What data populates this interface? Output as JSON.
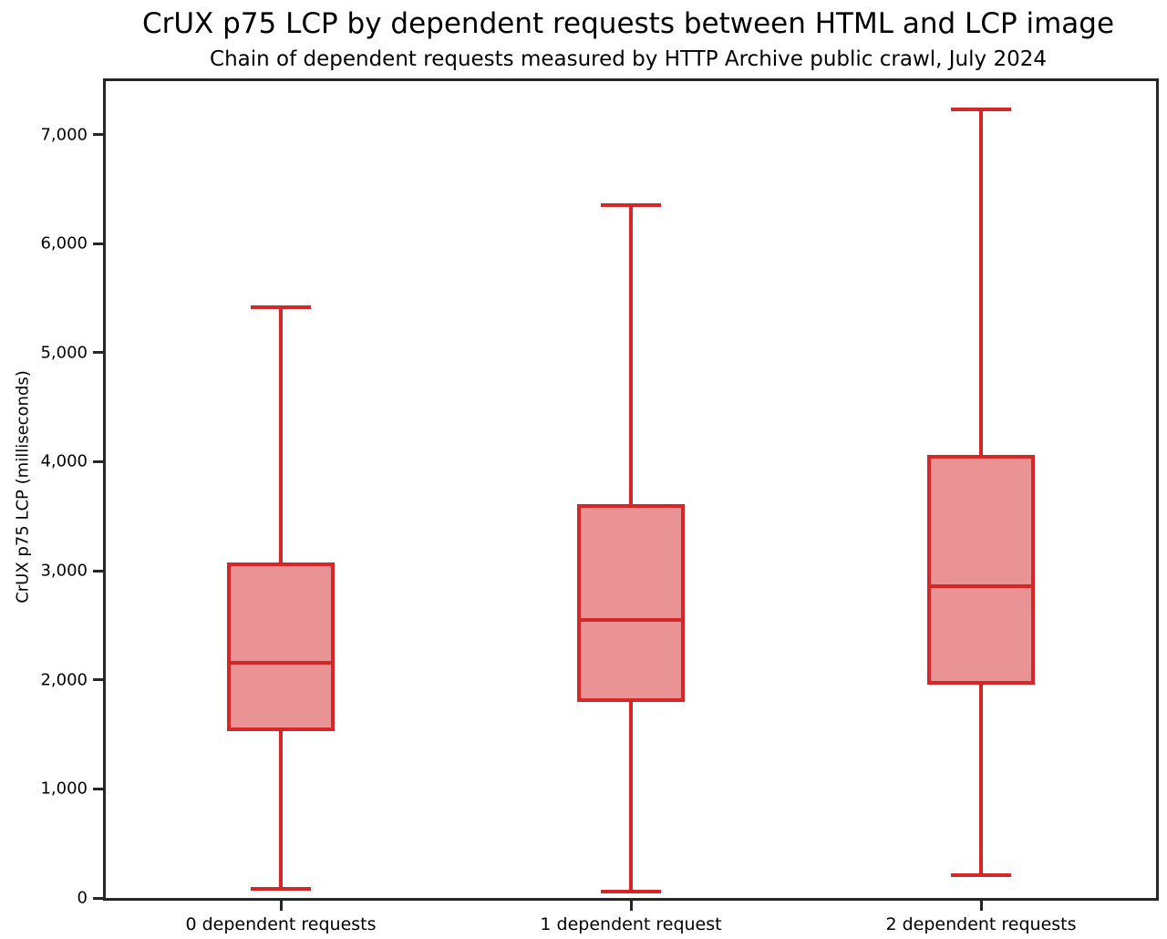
{
  "chart_data": {
    "type": "boxplot",
    "title": "CrUX p75 LCP by dependent requests between HTML and LCP image",
    "subtitle": "Chain of dependent requests measured by HTTP Archive public crawl, July 2024",
    "ylabel": "CrUX p75 LCP (milliseconds)",
    "xlabel": "",
    "categories": [
      "0 dependent requests",
      "1 dependent request",
      "2 dependent requests"
    ],
    "series": [
      {
        "name": "0 dependent requests",
        "whisker_low": 80,
        "q1": 1530,
        "median": 2160,
        "q3": 3080,
        "whisker_high": 5420
      },
      {
        "name": "1 dependent request",
        "whisker_low": 60,
        "q1": 1800,
        "median": 2550,
        "q3": 3610,
        "whisker_high": 6350
      },
      {
        "name": "2 dependent requests",
        "whisker_low": 210,
        "q1": 1960,
        "median": 2860,
        "q3": 4060,
        "whisker_high": 7230
      }
    ],
    "ylim": [
      0,
      7490
    ],
    "yticks": [
      0,
      1000,
      2000,
      3000,
      4000,
      5000,
      6000,
      7000
    ],
    "ytick_labels": [
      "0",
      "1,000",
      "2,000",
      "3,000",
      "4,000",
      "5,000",
      "6,000",
      "7,000"
    ],
    "grid": false,
    "legend": "none",
    "colors": {
      "box_edge": "#d62728",
      "box_fill": "#ea9394",
      "axis": "#262626",
      "text": "#000000"
    }
  }
}
